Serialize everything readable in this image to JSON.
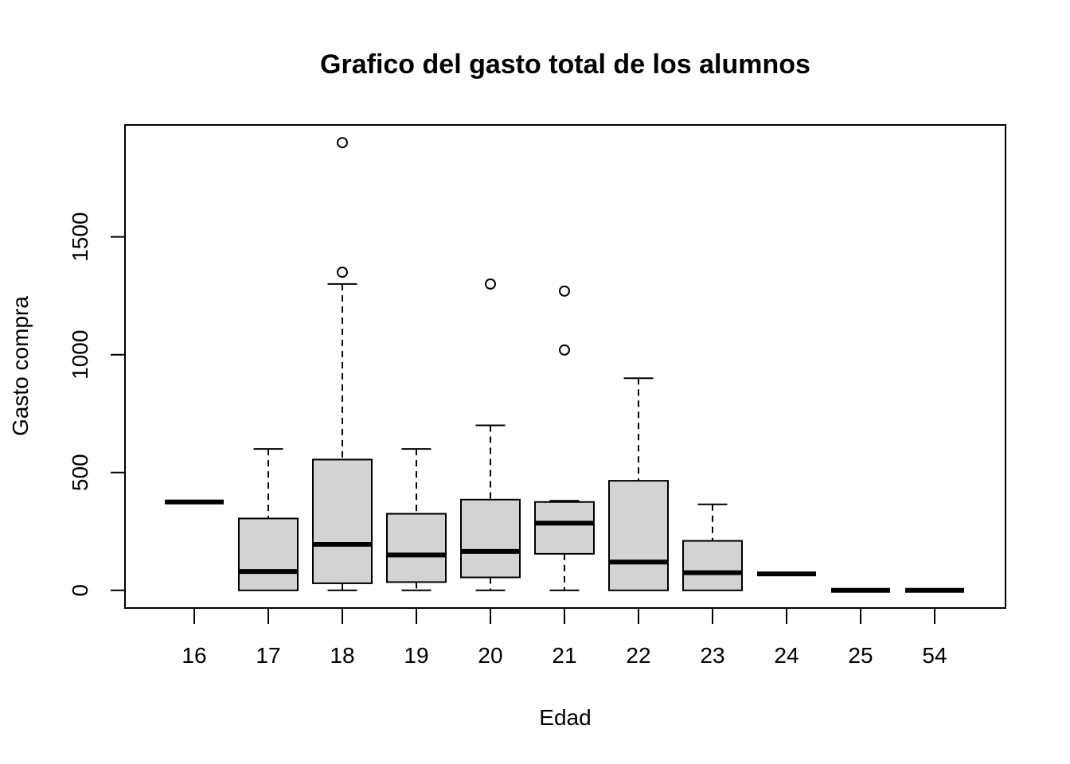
{
  "chart_data": {
    "type": "boxplot",
    "title": "Grafico del gasto total de los alumnos",
    "xlabel": "Edad",
    "ylabel": "Gasto compra",
    "ylim": [
      -75,
      1975
    ],
    "y_ticks": [
      0,
      500,
      1000,
      1500
    ],
    "grid": false,
    "categories": [
      "16",
      "17",
      "18",
      "19",
      "20",
      "21",
      "22",
      "23",
      "24",
      "25",
      "54"
    ],
    "boxes": [
      {
        "category": "16",
        "whisker_low": 375,
        "q1": 375,
        "median": 375,
        "q3": 375,
        "whisker_high": 375,
        "outliers": []
      },
      {
        "category": "17",
        "whisker_low": 0,
        "q1": 0,
        "median": 80,
        "q3": 305,
        "whisker_high": 600,
        "outliers": []
      },
      {
        "category": "18",
        "whisker_low": 0,
        "q1": 30,
        "median": 195,
        "q3": 555,
        "whisker_high": 1300,
        "outliers": [
          1350,
          1900
        ]
      },
      {
        "category": "19",
        "whisker_low": 0,
        "q1": 35,
        "median": 150,
        "q3": 325,
        "whisker_high": 600,
        "outliers": []
      },
      {
        "category": "20",
        "whisker_low": 0,
        "q1": 55,
        "median": 165,
        "q3": 385,
        "whisker_high": 700,
        "outliers": [
          1300
        ]
      },
      {
        "category": "21",
        "whisker_low": 0,
        "q1": 155,
        "median": 285,
        "q3": 375,
        "whisker_high": 380,
        "outliers": [
          1020,
          1270
        ]
      },
      {
        "category": "22",
        "whisker_low": 0,
        "q1": 0,
        "median": 120,
        "q3": 465,
        "whisker_high": 900,
        "outliers": []
      },
      {
        "category": "23",
        "whisker_low": 0,
        "q1": 0,
        "median": 75,
        "q3": 210,
        "whisker_high": 365,
        "outliers": []
      },
      {
        "category": "24",
        "whisker_low": 70,
        "q1": 70,
        "median": 70,
        "q3": 70,
        "whisker_high": 70,
        "outliers": []
      },
      {
        "category": "25",
        "whisker_low": 0,
        "q1": 0,
        "median": 0,
        "q3": 0,
        "whisker_high": 0,
        "outliers": []
      },
      {
        "category": "54",
        "whisker_low": 0,
        "q1": 0,
        "median": 0,
        "q3": 0,
        "whisker_high": 0,
        "outliers": []
      }
    ],
    "box_fill": "#d3d3d3",
    "line_color": "#000000"
  }
}
